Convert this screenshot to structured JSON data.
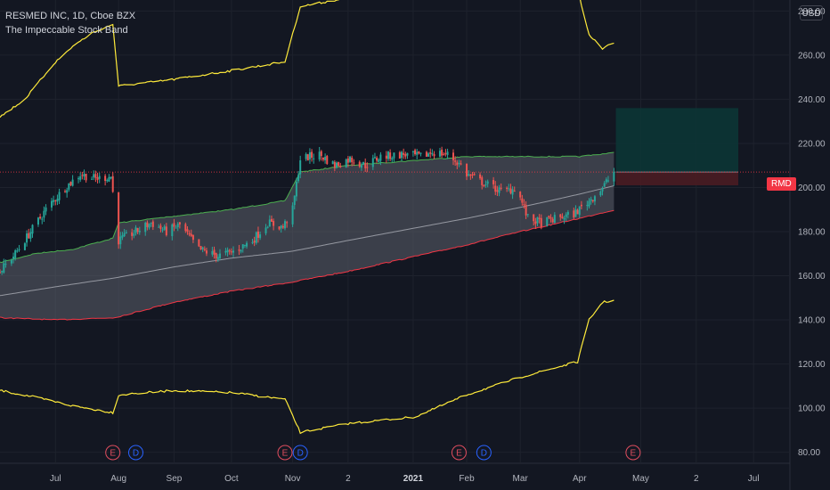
{
  "header": {
    "symbol_line": "RESMED INC, 1D, Cboe BZX",
    "indicator_name": "The Impeccable Stock Band"
  },
  "currency_label": "USD",
  "price_tag": {
    "symbol": "RMD",
    "color": "#f23645"
  },
  "colors": {
    "background": "#131722",
    "grid": "#1e222d",
    "up": "#26a69a",
    "down": "#ef5350",
    "outer_band": "#ffeb3b",
    "inner_upper": "#4caf50",
    "inner_lower": "#f23645",
    "middle_line": "#9598a1",
    "inner_fill": "#5d606b",
    "profit_zone": "#0c3535",
    "loss_zone": "#4a1c22",
    "event_earnings": "#e04d5e",
    "event_dividend": "#2962ff"
  },
  "chart_data": {
    "type": "candlestick",
    "title": "",
    "y_axis": {
      "side": "right",
      "ticks": [
        "80.00",
        "100.00",
        "120.00",
        "140.00",
        "160.00",
        "180.00",
        "200.00",
        "220.00",
        "240.00",
        "260.00",
        "280.00"
      ],
      "range": [
        75,
        285
      ]
    },
    "x_axis": {
      "ticks": [
        {
          "label": "Jul",
          "date": "2020-07-01"
        },
        {
          "label": "Aug",
          "date": "2020-08-03"
        },
        {
          "label": "Sep",
          "date": "2020-09-01"
        },
        {
          "label": "Oct",
          "date": "2020-10-01"
        },
        {
          "label": "Nov",
          "date": "2020-11-02"
        },
        {
          "label": "2",
          "date": "2020-12-01"
        },
        {
          "label": "2021",
          "date": "2021-01-04"
        },
        {
          "label": "Feb",
          "date": "2021-02-01"
        },
        {
          "label": "Mar",
          "date": "2021-03-01"
        },
        {
          "label": "Apr",
          "date": "2021-04-01"
        },
        {
          "label": "May",
          "date": "2021-05-03"
        },
        {
          "label": "2",
          "date": "2021-06-01"
        },
        {
          "label": "Jul",
          "date": "2021-07-01"
        }
      ],
      "bold_labels": [
        "2021"
      ],
      "range": [
        "2020-06-02",
        "2021-07-20"
      ]
    },
    "events": [
      {
        "type": "earnings",
        "label": "E",
        "date": "2020-07-31"
      },
      {
        "type": "dividend",
        "label": "D",
        "date": "2020-08-12"
      },
      {
        "type": "earnings",
        "label": "E",
        "date": "2020-10-29"
      },
      {
        "type": "dividend",
        "label": "D",
        "date": "2020-11-06"
      },
      {
        "type": "earnings",
        "label": "E",
        "date": "2021-01-28"
      },
      {
        "type": "dividend",
        "label": "D",
        "date": "2021-02-10"
      },
      {
        "type": "earnings",
        "label": "E",
        "date": "2021-04-29"
      }
    ],
    "price_anchors": [
      [
        "2020-06-02",
        162
      ],
      [
        "2020-06-10",
        170
      ],
      [
        "2020-06-18",
        180
      ],
      [
        "2020-06-26",
        190
      ],
      [
        "2020-07-06",
        200
      ],
      [
        "2020-07-14",
        206
      ],
      [
        "2020-07-22",
        204
      ],
      [
        "2020-07-30",
        205
      ],
      [
        "2020-08-03",
        176
      ],
      [
        "2020-08-12",
        180
      ],
      [
        "2020-08-20",
        184
      ],
      [
        "2020-08-28",
        180
      ],
      [
        "2020-09-04",
        183
      ],
      [
        "2020-09-14",
        172
      ],
      [
        "2020-09-24",
        169
      ],
      [
        "2020-10-02",
        171
      ],
      [
        "2020-10-12",
        176
      ],
      [
        "2020-10-20",
        184
      ],
      [
        "2020-10-28",
        182
      ],
      [
        "2020-11-02",
        190
      ],
      [
        "2020-11-06",
        213
      ],
      [
        "2020-11-16",
        215
      ],
      [
        "2020-11-24",
        210
      ],
      [
        "2020-12-02",
        213
      ],
      [
        "2020-12-10",
        210
      ],
      [
        "2020-12-18",
        214
      ],
      [
        "2020-12-30",
        215
      ],
      [
        "2021-01-08",
        214
      ],
      [
        "2021-01-14",
        216
      ],
      [
        "2021-01-22",
        215
      ],
      [
        "2021-01-29",
        210
      ],
      [
        "2021-02-01",
        206
      ],
      [
        "2021-02-10",
        202
      ],
      [
        "2021-02-20",
        198
      ],
      [
        "2021-02-27",
        200
      ],
      [
        "2021-03-05",
        186
      ],
      [
        "2021-03-12",
        184
      ],
      [
        "2021-03-20",
        186
      ],
      [
        "2021-03-29",
        188
      ],
      [
        "2021-04-06",
        194
      ],
      [
        "2021-04-13",
        200
      ],
      [
        "2021-04-19",
        207
      ]
    ],
    "outer_upper_anchors": [
      [
        "2020-06-02",
        232
      ],
      [
        "2020-06-15",
        240
      ],
      [
        "2020-06-30",
        256
      ],
      [
        "2020-07-10",
        264
      ],
      [
        "2020-07-20",
        270
      ],
      [
        "2020-07-31",
        274
      ],
      [
        "2020-08-03",
        246
      ],
      [
        "2020-09-01",
        249
      ],
      [
        "2020-10-01",
        253
      ],
      [
        "2020-10-29",
        257
      ],
      [
        "2020-11-06",
        282
      ],
      [
        "2020-12-01",
        286
      ],
      [
        "2021-01-05",
        289
      ],
      [
        "2021-01-20",
        294
      ],
      [
        "2021-02-01",
        292
      ],
      [
        "2021-03-01",
        290
      ],
      [
        "2021-03-20",
        292
      ],
      [
        "2021-03-31",
        290
      ],
      [
        "2021-04-06",
        269
      ],
      [
        "2021-04-13",
        263
      ],
      [
        "2021-04-20",
        266
      ]
    ],
    "inner_upper_anchors": [
      [
        "2020-06-02",
        166
      ],
      [
        "2020-06-20",
        170
      ],
      [
        "2020-07-10",
        172
      ],
      [
        "2020-07-31",
        177
      ],
      [
        "2020-08-03",
        184
      ],
      [
        "2020-09-01",
        187
      ],
      [
        "2020-10-01",
        190
      ],
      [
        "2020-10-29",
        194
      ],
      [
        "2020-11-06",
        207
      ],
      [
        "2020-12-01",
        210
      ],
      [
        "2021-01-01",
        212
      ],
      [
        "2021-02-01",
        214
      ],
      [
        "2021-03-01",
        214
      ],
      [
        "2021-04-01",
        214
      ],
      [
        "2021-04-20",
        216
      ]
    ],
    "middle_anchors": [
      [
        "2020-06-02",
        151
      ],
      [
        "2020-07-01",
        155
      ],
      [
        "2020-08-01",
        159
      ],
      [
        "2020-09-01",
        164
      ],
      [
        "2020-10-01",
        168
      ],
      [
        "2020-11-01",
        171
      ],
      [
        "2020-12-01",
        176
      ],
      [
        "2021-01-01",
        181
      ],
      [
        "2021-02-01",
        186
      ],
      [
        "2021-03-01",
        191
      ],
      [
        "2021-04-01",
        197
      ],
      [
        "2021-04-20",
        201
      ]
    ],
    "inner_lower_anchors": [
      [
        "2020-06-02",
        141
      ],
      [
        "2020-07-01",
        140
      ],
      [
        "2020-08-01",
        141
      ],
      [
        "2020-09-01",
        148
      ],
      [
        "2020-10-01",
        153
      ],
      [
        "2020-11-01",
        157
      ],
      [
        "2020-12-01",
        162
      ],
      [
        "2021-01-01",
        168
      ],
      [
        "2021-02-01",
        174
      ],
      [
        "2021-03-01",
        180
      ],
      [
        "2021-04-01",
        186
      ],
      [
        "2021-04-20",
        190
      ]
    ],
    "outer_lower_anchors": [
      [
        "2020-06-02",
        108
      ],
      [
        "2020-06-20",
        105
      ],
      [
        "2020-07-10",
        101
      ],
      [
        "2020-07-31",
        98
      ],
      [
        "2020-08-03",
        106
      ],
      [
        "2020-09-01",
        108
      ],
      [
        "2020-10-01",
        107
      ],
      [
        "2020-10-29",
        104
      ],
      [
        "2020-11-06",
        89
      ],
      [
        "2020-12-01",
        93
      ],
      [
        "2021-01-05",
        96
      ],
      [
        "2021-02-01",
        106
      ],
      [
        "2021-03-01",
        114
      ],
      [
        "2021-03-31",
        121
      ],
      [
        "2021-04-06",
        140
      ],
      [
        "2021-04-13",
        148
      ],
      [
        "2021-04-20",
        149
      ]
    ],
    "position_tool": {
      "start_date": "2021-04-20",
      "end_date": "2021-06-23",
      "entry": 207,
      "target": 236,
      "stop": 201
    },
    "last_price_line": 207
  }
}
